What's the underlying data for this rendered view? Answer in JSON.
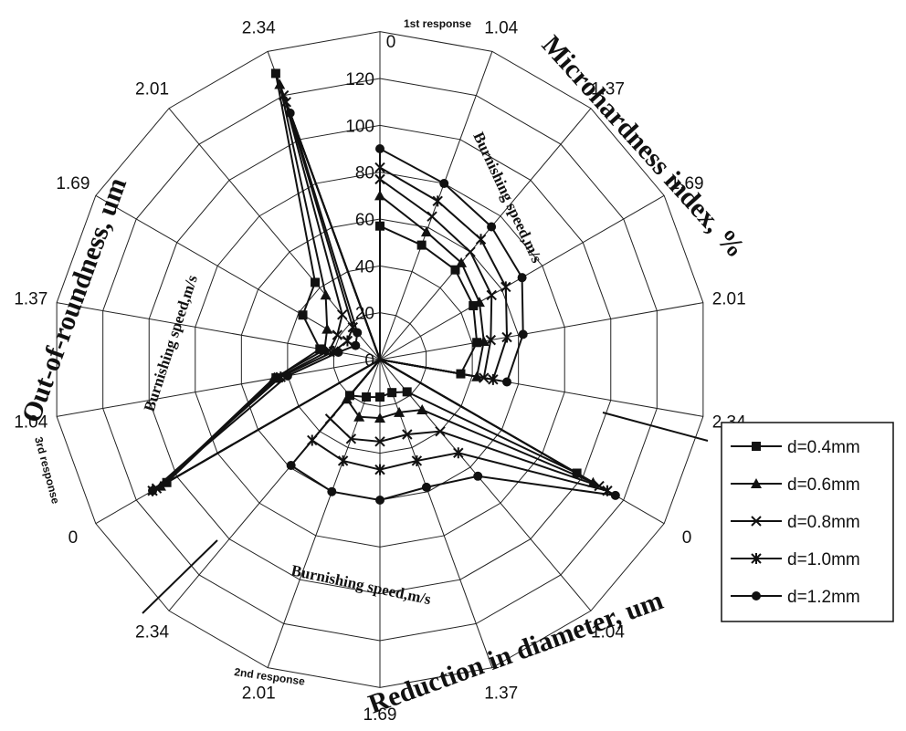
{
  "chart_data": {
    "type": "radar",
    "radial_axis": {
      "ticks": [
        "0",
        "20",
        "40",
        "60",
        "80",
        "100",
        "120"
      ],
      "range": [
        0,
        120
      ]
    },
    "sectors": [
      {
        "response": "1st response",
        "title": "Microhardness index, %",
        "speed_label": "Burnishing speed,m/s",
        "speeds": [
          "0",
          "1.04",
          "1.37",
          "1.69",
          "2.01",
          "2.34"
        ]
      },
      {
        "response": "2nd response",
        "title": "Reduction in diameter, um",
        "speed_label": "Burnishing speed,m/s",
        "speeds": [
          "0",
          "1.04",
          "1.37",
          "1.69",
          "2.01",
          "2.34"
        ]
      },
      {
        "response": "3rd response",
        "title": "Out-of-roundness, um",
        "speed_label": "Burnishing speed,m/s",
        "speeds": [
          "0",
          "1.04",
          "1.37",
          "1.69",
          "2.01",
          "2.34"
        ]
      }
    ],
    "series": [
      {
        "name": "d=0.4mm",
        "marker": "square",
        "response1": [
          57,
          52,
          50,
          46,
          42,
          35
        ],
        "response2": [
          97,
          18,
          15,
          16,
          17,
          20
        ],
        "response3": [
          105,
          45,
          26,
          38,
          43,
          130
        ]
      },
      {
        "name": "d=0.6mm",
        "marker": "triangle",
        "response1": [
          70,
          58,
          54,
          49,
          45,
          42
        ],
        "response2": [
          105,
          28,
          24,
          25,
          26,
          22
        ],
        "response3": [
          108,
          46,
          24,
          26,
          36,
          125
        ]
      },
      {
        "name": "d=0.8mm",
        "marker": "x",
        "response1": [
          77,
          65,
          60,
          55,
          48,
          45
        ],
        "response2": [
          108,
          40,
          34,
          35,
          36,
          33
        ],
        "response3": [
          110,
          44,
          22,
          21,
          25,
          120
        ]
      },
      {
        "name": "d=1.0mm",
        "marker": "star",
        "response1": [
          82,
          72,
          67,
          62,
          55,
          49
        ],
        "response2": [
          112,
          52,
          46,
          47,
          46,
          45
        ],
        "response3": [
          112,
          43,
          20,
          16,
          18,
          117
        ]
      },
      {
        "name": "d=1.2mm",
        "marker": "circle",
        "response1": [
          90,
          80,
          74,
          70,
          62,
          55
        ],
        "response2": [
          116,
          65,
          58,
          60,
          60,
          59
        ],
        "response3": [
          112,
          40,
          18,
          12,
          15,
          112
        ]
      }
    ],
    "legend": {
      "position": "right"
    },
    "grid": true,
    "marker_color": "#111111"
  }
}
